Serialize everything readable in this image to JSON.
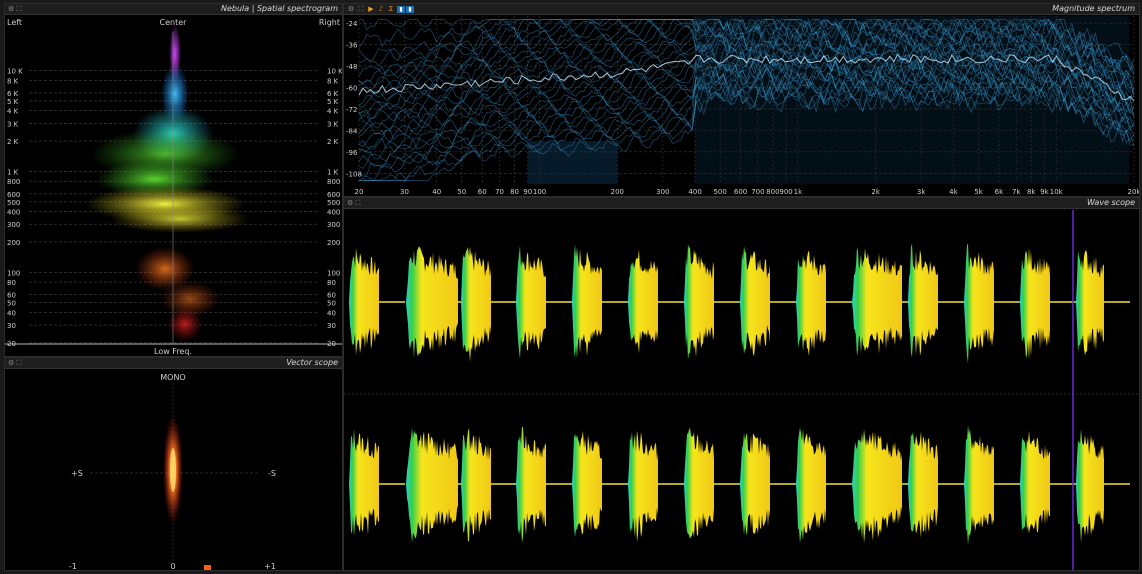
{
  "spectrogram": {
    "title": "Nebula | Spatial spectrogram",
    "left_label": "Left",
    "center_label": "Center",
    "right_label": "Right",
    "bottom_label": "Low Freq.",
    "freq_labels": [
      "10 K",
      "8 K",
      "6 K",
      "5 K",
      "4 K",
      "3 K",
      "2 K",
      "1 K",
      "800",
      "600",
      "500",
      "400",
      "300",
      "200",
      "100",
      "80",
      "60",
      "50",
      "40",
      "30",
      "20"
    ],
    "freq_values": [
      10000,
      8000,
      6000,
      5000,
      4000,
      3000,
      2000,
      1000,
      800,
      600,
      500,
      400,
      300,
      200,
      100,
      80,
      60,
      50,
      40,
      30,
      20
    ]
  },
  "vectorscope": {
    "title": "Vector scope",
    "top_label": "MONO",
    "left_label": "+S",
    "right_label": "-S",
    "bottom_labels": [
      "-1",
      "0",
      "+1"
    ]
  },
  "magnitude": {
    "title": "Magnitude spectrum",
    "db_labels": [
      "-24",
      "-36",
      "-48",
      "-60",
      "-72",
      "-84",
      "-96",
      "-108"
    ],
    "db_values": [
      -24,
      -36,
      -48,
      -60,
      -72,
      -84,
      -96,
      -108
    ],
    "freq_labels": [
      "20",
      "30",
      "40",
      "50",
      "60",
      "70",
      "80",
      "90",
      "100",
      "200",
      "300",
      "400",
      "500",
      "600",
      "700",
      "800",
      "900",
      "1k",
      "2k",
      "3k",
      "4k",
      "5k",
      "6k",
      "7k",
      "8k",
      "9k",
      "10k",
      "20k"
    ],
    "freq_values": [
      20,
      30,
      40,
      50,
      60,
      70,
      80,
      90,
      100,
      200,
      300,
      400,
      500,
      600,
      700,
      800,
      900,
      1000,
      2000,
      3000,
      4000,
      5000,
      6000,
      7000,
      8000,
      9000,
      10000,
      20000
    ],
    "toolbar_icons": [
      "play-icon",
      "notes-icon",
      "sigma-icon",
      "button-1",
      "button-2"
    ]
  },
  "wavescope": {
    "title": "Wave scope"
  },
  "colors": {
    "panel_bg": "#000000",
    "title_bg": "#1e1e1e",
    "spectrum_line": "#3aa8e8",
    "cursor": "#6a28d8",
    "wave_yellow": "#f6e51a",
    "wave_green": "#36d04a"
  }
}
